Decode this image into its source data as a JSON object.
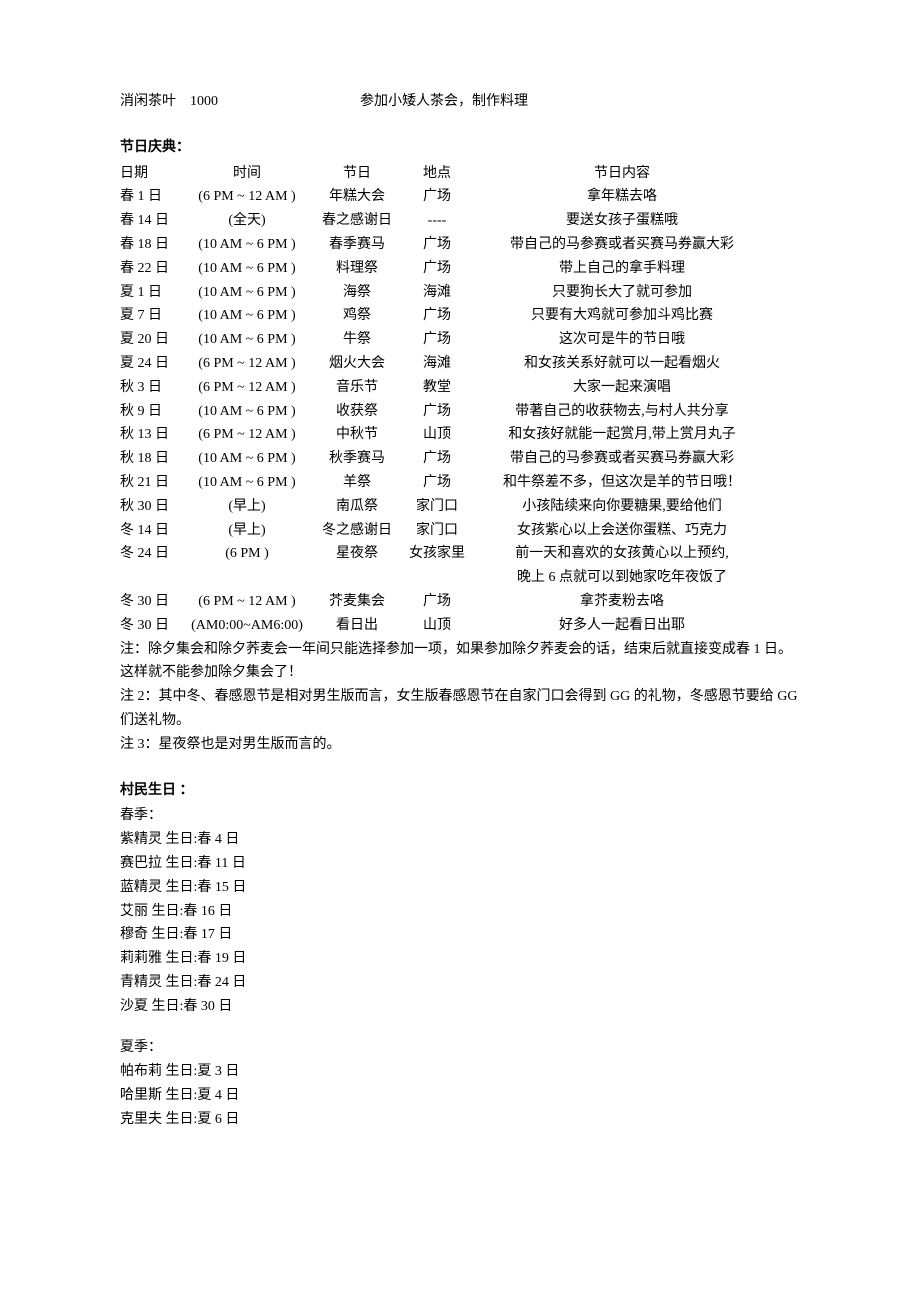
{
  "topRow": {
    "c0": "消闲茶叶",
    "c1": "1000",
    "c2": "参加小矮人茶会，制作料理"
  },
  "festivals": {
    "title": "节日庆典：",
    "header": {
      "c0": "日期",
      "c1": "时间",
      "c2": "节日",
      "c3": "地点",
      "c4": "节日内容"
    },
    "rows": [
      {
        "c0": "春 1 日",
        "c1": "(6 PM ~ 12 AM )",
        "c2": "年糕大会",
        "c3": "广场",
        "c4": "拿年糕去咯"
      },
      {
        "c0": "春 14 日",
        "c1": "(全天)",
        "c2": "春之感谢日",
        "c3": "----",
        "c4": "要送女孩子蛋糕哦"
      },
      {
        "c0": "春 18 日",
        "c1": "(10 AM ~ 6 PM )",
        "c2": "春季赛马",
        "c3": "广场",
        "c4": "带自己的马参赛或者买赛马券赢大彩"
      },
      {
        "c0": "春 22 日",
        "c1": "(10 AM ~ 6 PM )",
        "c2": "料理祭",
        "c3": "广场",
        "c4": "带上自己的拿手料理"
      },
      {
        "c0": "夏 1 日",
        "c1": "(10 AM ~ 6 PM )",
        "c2": "海祭",
        "c3": "海滩",
        "c4": "只要狗长大了就可参加"
      },
      {
        "c0": "夏 7 日",
        "c1": "(10 AM ~ 6 PM )",
        "c2": "鸡祭",
        "c3": "广场",
        "c4": "只要有大鸡就可参加斗鸡比赛"
      },
      {
        "c0": "夏 20 日",
        "c1": "(10 AM ~ 6 PM )",
        "c2": "牛祭",
        "c3": "广场",
        "c4": "这次可是牛的节日哦"
      },
      {
        "c0": "夏 24 日",
        "c1": "(6 PM ~ 12 AM )",
        "c2": "烟火大会",
        "c3": "海滩",
        "c4": "和女孩关系好就可以一起看烟火"
      },
      {
        "c0": "秋 3 日",
        "c1": "(6 PM ~ 12 AM )",
        "c2": "音乐节",
        "c3": "教堂",
        "c4": "大家一起来演唱"
      },
      {
        "c0": "秋 9 日",
        "c1": "(10 AM ~ 6 PM )",
        "c2": "收获祭",
        "c3": "广场",
        "c4": "带著自己的收获物去,与村人共分享"
      },
      {
        "c0": "秋 13 日",
        "c1": "(6 PM ~ 12 AM )",
        "c2": "中秋节",
        "c3": "山顶",
        "c4": "和女孩好就能一起赏月,带上赏月丸子"
      },
      {
        "c0": "秋 18 日",
        "c1": "(10 AM ~ 6 PM )",
        "c2": "秋季赛马",
        "c3": "广场",
        "c4": "带自己的马参赛或者买赛马券赢大彩"
      },
      {
        "c0": "秋 21 日",
        "c1": "(10 AM ~ 6 PM )",
        "c2": "羊祭",
        "c3": "广场",
        "c4": "和牛祭差不多，但这次是羊的节日哦！"
      },
      {
        "c0": "秋 30 日",
        "c1": "(早上)",
        "c2": "南瓜祭",
        "c3": "家门口",
        "c4": "小孩陆续来向你要糖果,要给他们"
      },
      {
        "c0": "冬 14 日",
        "c1": "(早上)",
        "c2": "冬之感谢日",
        "c3": "家门口",
        "c4": "女孩紫心以上会送你蛋糕、巧克力"
      },
      {
        "c0": "冬 24 日",
        "c1": "(6 PM )",
        "c2": "星夜祭",
        "c3": "女孩家里",
        "c4": "前一天和喜欢的女孩黄心以上预约,"
      },
      {
        "c0": "",
        "c1": "",
        "c2": "",
        "c3": "",
        "c4": "晚上 6 点就可以到她家吃年夜饭了"
      },
      {
        "c0": "冬 30 日",
        "c1": "(6 PM ~ 12 AM )",
        "c2": "芥麦集会",
        "c3": "广场",
        "c4": "拿芥麦粉去咯"
      },
      {
        "c0": "冬 30 日",
        "c1": "(AM0:00~AM6:00)",
        "c2": "看日出",
        "c3": "山顶",
        "c4": "好多人一起看日出耶"
      }
    ],
    "note1": "注：除夕集会和除夕荞麦会一年间只能选择参加一项，如果参加除夕荞麦会的话，结束后就直接变成春 1 日。这样就不能参加除夕集会了！",
    "note2": "注 2：其中冬、春感恩节是相对男生版而言，女生版春感恩节在自家门口会得到 GG 的礼物，冬感恩节要给 GG 们送礼物。",
    "note3": "注 3：星夜祭也是对男生版而言的。"
  },
  "birthdays": {
    "title": "村民生日 ：",
    "spring": {
      "label": "春季：",
      "items": [
        "紫精灵 生日:春 4 日",
        "赛巴拉 生日:春 11 日",
        "蓝精灵 生日:春 15 日",
        "艾丽 生日:春 16 日",
        "穆奇 生日:春 17 日",
        "莉莉雅 生日:春 19 日",
        "青精灵 生日:春 24 日",
        "沙夏 生日:春 30 日"
      ]
    },
    "summer": {
      "label": "夏季：",
      "items": [
        "帕布莉 生日:夏 3 日",
        "哈里斯 生日:夏 4 日",
        "克里夫 生日:夏 6 日"
      ]
    }
  },
  "layout": {
    "topRow_widths": [
      70,
      170,
      360
    ],
    "fest_col_widths": [
      62,
      130,
      90,
      70,
      300
    ],
    "fest_header_align": [
      "left",
      "center",
      "center",
      "center",
      "center"
    ],
    "fest_row_align": [
      "left",
      "center",
      "center",
      "center",
      "center"
    ]
  }
}
